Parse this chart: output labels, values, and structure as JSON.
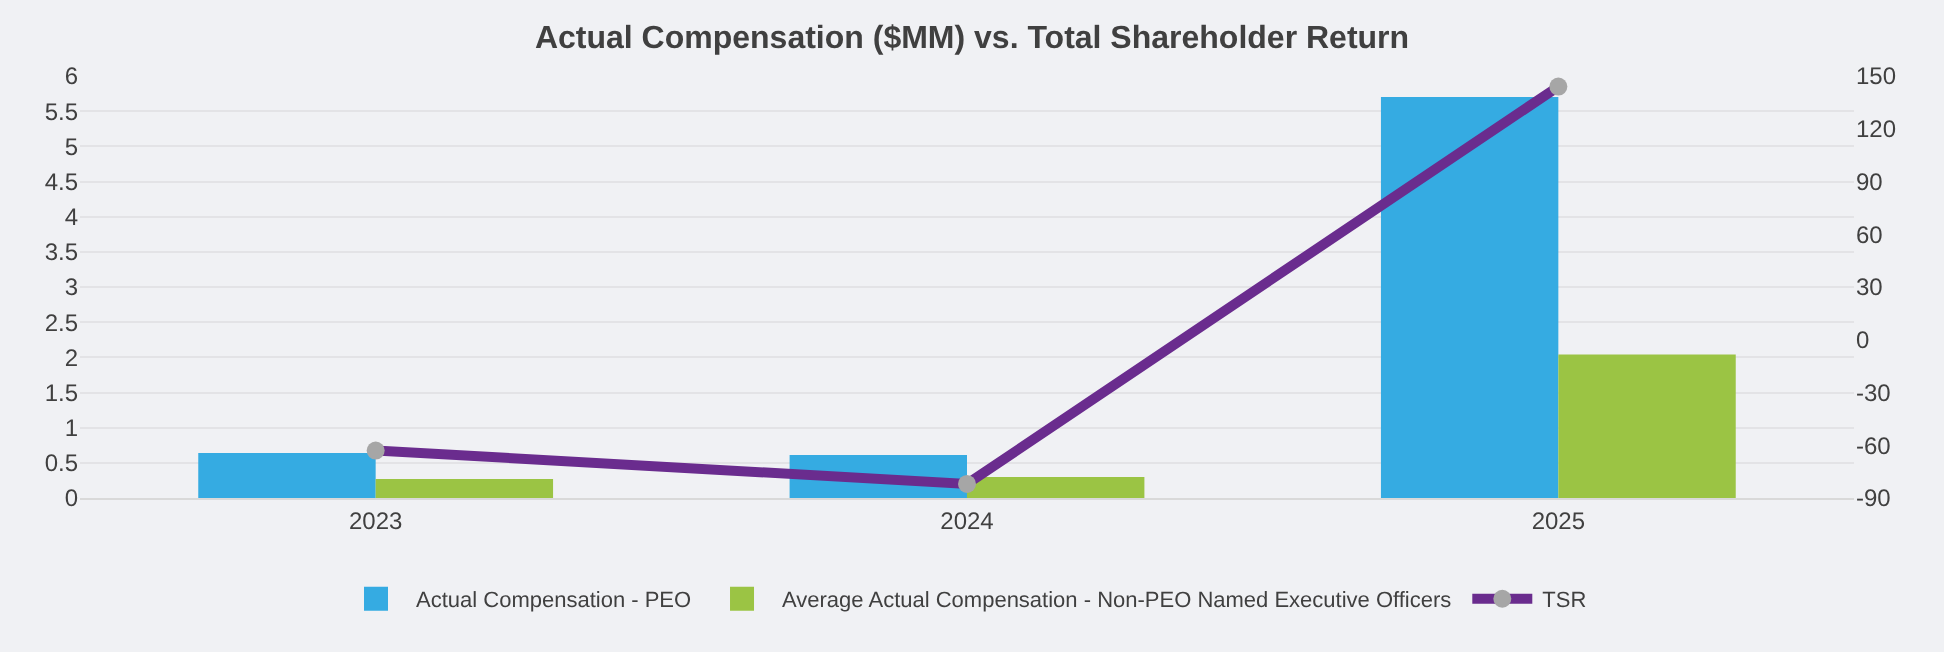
{
  "chart_data": {
    "type": "bar",
    "title": "Actual Compensation ($MM) vs. Total Shareholder Return",
    "categories": [
      "2023",
      "2024",
      "2025"
    ],
    "series": [
      {
        "name": "Actual Compensation - PEO",
        "color": "#35abe2",
        "values": [
          0.64,
          0.61,
          5.7
        ]
      },
      {
        "name": "Average Actual Compensation - Non-PEO Named Executive Officers",
        "color": "#9bc444",
        "values": [
          0.27,
          0.3,
          2.04
        ]
      },
      {
        "name": "TSR",
        "type": "line",
        "axis": "y2",
        "color": "#6a2c8e",
        "values": [
          -63,
          -82,
          144
        ]
      }
    ],
    "ylim": [
      0,
      6
    ],
    "yticks": [
      0,
      0.5,
      1,
      1.5,
      2,
      2.5,
      3,
      3.5,
      4,
      4.5,
      5,
      5.5,
      6
    ],
    "y2lim": [
      -90,
      150
    ],
    "y2ticks": [
      -90,
      -60,
      -30,
      0,
      30,
      60,
      90,
      120,
      150
    ],
    "grid": "y",
    "legend": "bottom",
    "marker": "circle"
  }
}
